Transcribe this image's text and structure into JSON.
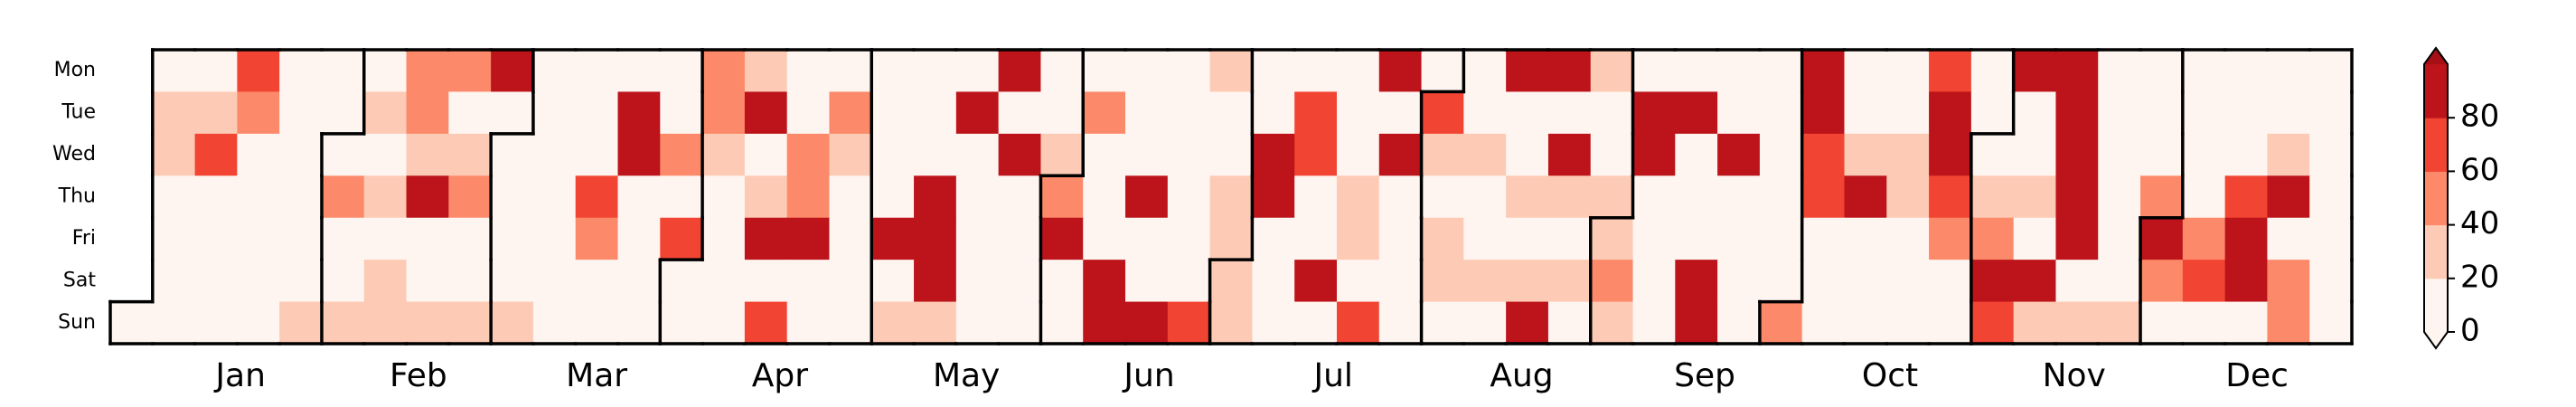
{
  "chart_data": {
    "type": "calendar-heatmap",
    "days": [
      "Mon",
      "Tue",
      "Wed",
      "Thu",
      "Fri",
      "Sat",
      "Sun"
    ],
    "months": [
      "Jan",
      "Feb",
      "Mar",
      "Apr",
      "May",
      "Jun",
      "Jul",
      "Aug",
      "Sep",
      "Oct",
      "Nov",
      "Dec"
    ],
    "values": [
      [
        null,
        6,
        6,
        70,
        6,
        6,
        6,
        50,
        50,
        90,
        6,
        6,
        6,
        6,
        50,
        30,
        6,
        6,
        6,
        6,
        6,
        90,
        6,
        6,
        6,
        6,
        30,
        6,
        6,
        6,
        90,
        6,
        6,
        90,
        90,
        30,
        6,
        6,
        6,
        6,
        90,
        6,
        6,
        70,
        6,
        90,
        90,
        6,
        6,
        6,
        6,
        6,
        6
      ],
      [
        null,
        30,
        30,
        50,
        6,
        6,
        30,
        50,
        6,
        6,
        6,
        6,
        90,
        6,
        50,
        90,
        6,
        50,
        6,
        6,
        90,
        6,
        6,
        50,
        6,
        6,
        6,
        6,
        70,
        6,
        6,
        70,
        6,
        6,
        6,
        6,
        90,
        90,
        6,
        6,
        90,
        6,
        6,
        90,
        6,
        6,
        90,
        6,
        6,
        6,
        6,
        6,
        6
      ],
      [
        null,
        30,
        70,
        6,
        6,
        6,
        6,
        30,
        30,
        6,
        6,
        6,
        90,
        50,
        30,
        6,
        50,
        30,
        6,
        6,
        6,
        90,
        30,
        6,
        6,
        6,
        6,
        90,
        70,
        6,
        90,
        30,
        30,
        6,
        90,
        6,
        90,
        6,
        90,
        6,
        70,
        30,
        30,
        90,
        6,
        6,
        90,
        6,
        6,
        6,
        6,
        30,
        6
      ],
      [
        null,
        6,
        6,
        6,
        6,
        50,
        30,
        90,
        50,
        6,
        6,
        70,
        6,
        6,
        6,
        30,
        50,
        6,
        6,
        90,
        6,
        6,
        50,
        6,
        90,
        6,
        30,
        90,
        6,
        30,
        6,
        6,
        6,
        30,
        30,
        30,
        6,
        6,
        6,
        6,
        70,
        90,
        30,
        70,
        30,
        30,
        90,
        6,
        50,
        6,
        70,
        90,
        6
      ],
      [
        null,
        6,
        6,
        6,
        6,
        6,
        6,
        6,
        6,
        6,
        6,
        50,
        6,
        70,
        6,
        90,
        90,
        6,
        90,
        90,
        6,
        6,
        90,
        6,
        6,
        6,
        30,
        6,
        6,
        30,
        6,
        30,
        6,
        6,
        6,
        30,
        6,
        6,
        6,
        6,
        6,
        6,
        6,
        50,
        50,
        6,
        90,
        6,
        90,
        50,
        90,
        6,
        6
      ],
      [
        null,
        6,
        6,
        6,
        6,
        6,
        30,
        6,
        6,
        6,
        6,
        6,
        6,
        6,
        6,
        6,
        6,
        6,
        6,
        90,
        6,
        6,
        6,
        90,
        6,
        6,
        30,
        6,
        90,
        6,
        6,
        30,
        30,
        30,
        30,
        50,
        6,
        90,
        6,
        6,
        6,
        6,
        6,
        6,
        90,
        90,
        6,
        6,
        50,
        70,
        90,
        50,
        6
      ],
      [
        6,
        6,
        6,
        6,
        30,
        30,
        30,
        30,
        30,
        30,
        6,
        6,
        6,
        6,
        6,
        70,
        6,
        6,
        30,
        30,
        6,
        6,
        6,
        90,
        90,
        70,
        30,
        6,
        6,
        70,
        6,
        6,
        6,
        90,
        6,
        30,
        6,
        90,
        6,
        50,
        6,
        6,
        6,
        6,
        70,
        30,
        30,
        30,
        6,
        6,
        6,
        50,
        6
      ]
    ],
    "colorbar": {
      "bounds": [
        0,
        20,
        40,
        60,
        80,
        100
      ],
      "ticks": [
        0,
        20,
        40,
        60,
        80
      ],
      "colors": [
        "#fff5f0",
        "#fdcab5",
        "#fc8a6a",
        "#f14432",
        "#bc141a"
      ],
      "under_color": "#fff5f0",
      "over_color": "#a50f15"
    }
  }
}
